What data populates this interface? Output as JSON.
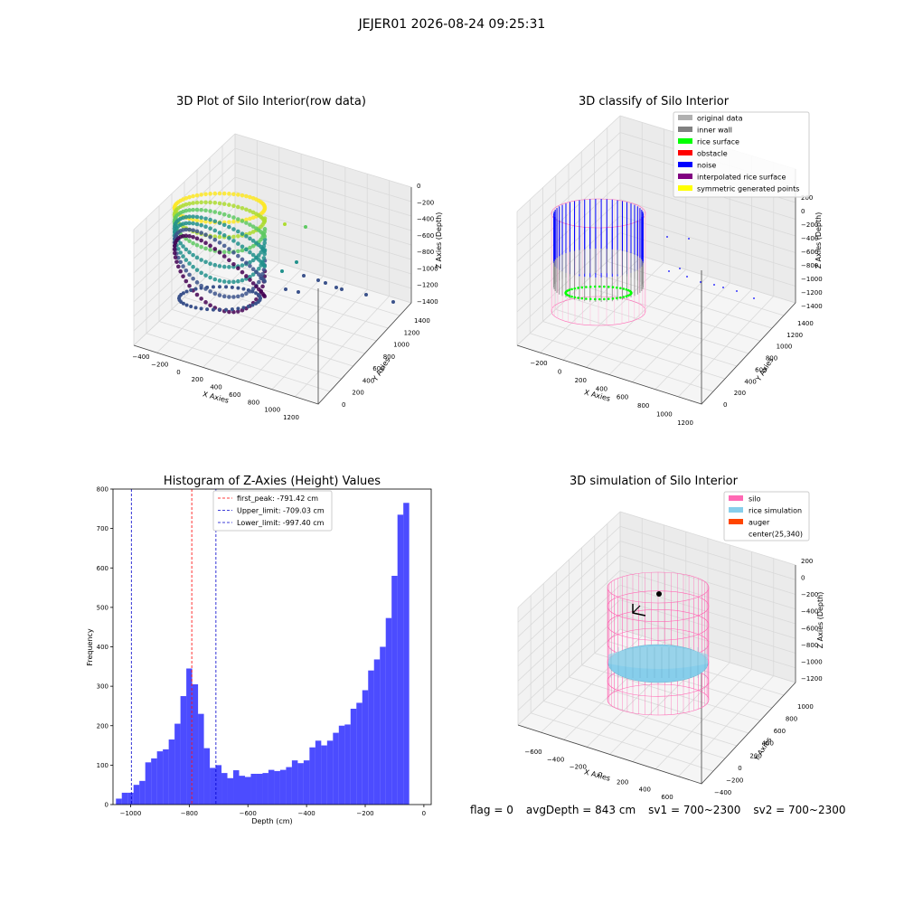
{
  "figure_title": "JEJER01 2026-08-24 09:25:31",
  "footer": {
    "flag": "flag = 0",
    "avg_depth": "avgDepth = 843 cm",
    "sv1": "sv1 = 700~2300",
    "sv2": "sv2 = 700~2300"
  },
  "colors": {
    "histogram_bar": "#0000ff",
    "first_peak": "#ff0000",
    "limits": "#0000cc",
    "silo": "#ff69b4",
    "rice_simulation": "#87ceeb",
    "auger": "#ff4500"
  },
  "chart_data": [
    {
      "type": "scatter",
      "title": "3D Plot of Silo Interior(row data)",
      "xlabel": "X Axies",
      "ylabel": "Y Axies",
      "zlabel": "Z Axies (Depth)",
      "x_ticks": [
        "−400",
        "−200",
        "0",
        "200",
        "400",
        "600",
        "800",
        "1000",
        "1200"
      ],
      "y_ticks": [
        "0",
        "200",
        "400",
        "600",
        "800",
        "1000",
        "1200",
        "1400"
      ],
      "z_ticks": [
        "0",
        "−200",
        "−400",
        "−600",
        "−800",
        "−1000",
        "−1200",
        "−1400"
      ],
      "colormap": "viridis"
    },
    {
      "type": "scatter",
      "title": "3D classify of Silo Interior",
      "xlabel": "X Axies",
      "ylabel": "Y Axies",
      "zlabel": "Z Axies (Depth)",
      "x_ticks": [
        "−200",
        "0",
        "200",
        "400",
        "600",
        "800",
        "1000",
        "1200"
      ],
      "y_ticks": [
        "0",
        "200",
        "400",
        "600",
        "800",
        "1000",
        "1200",
        "1400"
      ],
      "z_ticks": [
        "200",
        "0",
        "−200",
        "−400",
        "−600",
        "−800",
        "−1000",
        "−1200",
        "−1400"
      ],
      "legend_position": "top-right",
      "legend": [
        {
          "label": "original data",
          "color": "#b0b0b0"
        },
        {
          "label": "inner wall",
          "color": "#808080"
        },
        {
          "label": "rice surface",
          "color": "#00ff00"
        },
        {
          "label": "obstacle",
          "color": "#ff0000"
        },
        {
          "label": "noise",
          "color": "#0000ff"
        },
        {
          "label": "interpolated rice surface",
          "color": "#800080"
        },
        {
          "label": "symmetric generated points",
          "color": "#ffff00"
        }
      ]
    },
    {
      "type": "bar",
      "title": "Histogram of Z-Axies (Height) Values",
      "xlabel": "Depth (cm)",
      "ylabel": "Frequency",
      "xlim": [
        -1060,
        25
      ],
      "ylim": [
        0,
        800
      ],
      "x_ticks": [
        -1000,
        -800,
        -600,
        -400,
        -200,
        0
      ],
      "x_tick_labels": [
        "−1000",
        "−800",
        "−600",
        "−400",
        "−200",
        "0"
      ],
      "y_ticks": [
        0,
        100,
        200,
        300,
        400,
        500,
        600,
        700,
        800
      ],
      "bin_start": -1050,
      "bin_width": 20,
      "values": [
        15,
        30,
        30,
        50,
        60,
        107,
        117,
        135,
        140,
        165,
        205,
        275,
        345,
        305,
        230,
        143,
        93,
        100,
        80,
        67,
        87,
        73,
        70,
        78,
        78,
        80,
        88,
        85,
        88,
        95,
        112,
        105,
        112,
        145,
        162,
        150,
        162,
        182,
        200,
        203,
        243,
        258,
        290,
        340,
        368,
        400,
        473,
        580,
        735,
        765
      ],
      "lines": [
        {
          "label": "first_peak: -791.42 cm",
          "x": -791.42,
          "color": "#ff0000"
        },
        {
          "label": "Upper_limit: -709.03 cm",
          "x": -709.03,
          "color": "#0000cc"
        },
        {
          "label": "Lower_limit: -997.40 cm",
          "x": -997.4,
          "color": "#0000cc"
        }
      ],
      "legend_position": "top-center"
    },
    {
      "type": "scatter",
      "title": "3D simulation of Silo Interior",
      "xlabel": "X Axies",
      "ylabel": "Y Axies",
      "zlabel": "Z Axies (Depth)",
      "x_ticks": [
        "−600",
        "−400",
        "−200",
        "0",
        "200",
        "400",
        "600"
      ],
      "y_ticks": [
        "−400",
        "−200",
        "0",
        "200",
        "400",
        "600",
        "800",
        "1000"
      ],
      "z_ticks": [
        "200",
        "0",
        "−200",
        "−400",
        "−600",
        "−800",
        "−1000",
        "−1200"
      ],
      "legend_position": "top-right",
      "legend": [
        {
          "label": "silo",
          "color": "#ff69b4"
        },
        {
          "label": "rice simulation",
          "color": "#87ceeb"
        },
        {
          "label": "auger",
          "color": "#ff4500"
        },
        {
          "label": "center(25,340)",
          "color": ""
        }
      ]
    }
  ]
}
